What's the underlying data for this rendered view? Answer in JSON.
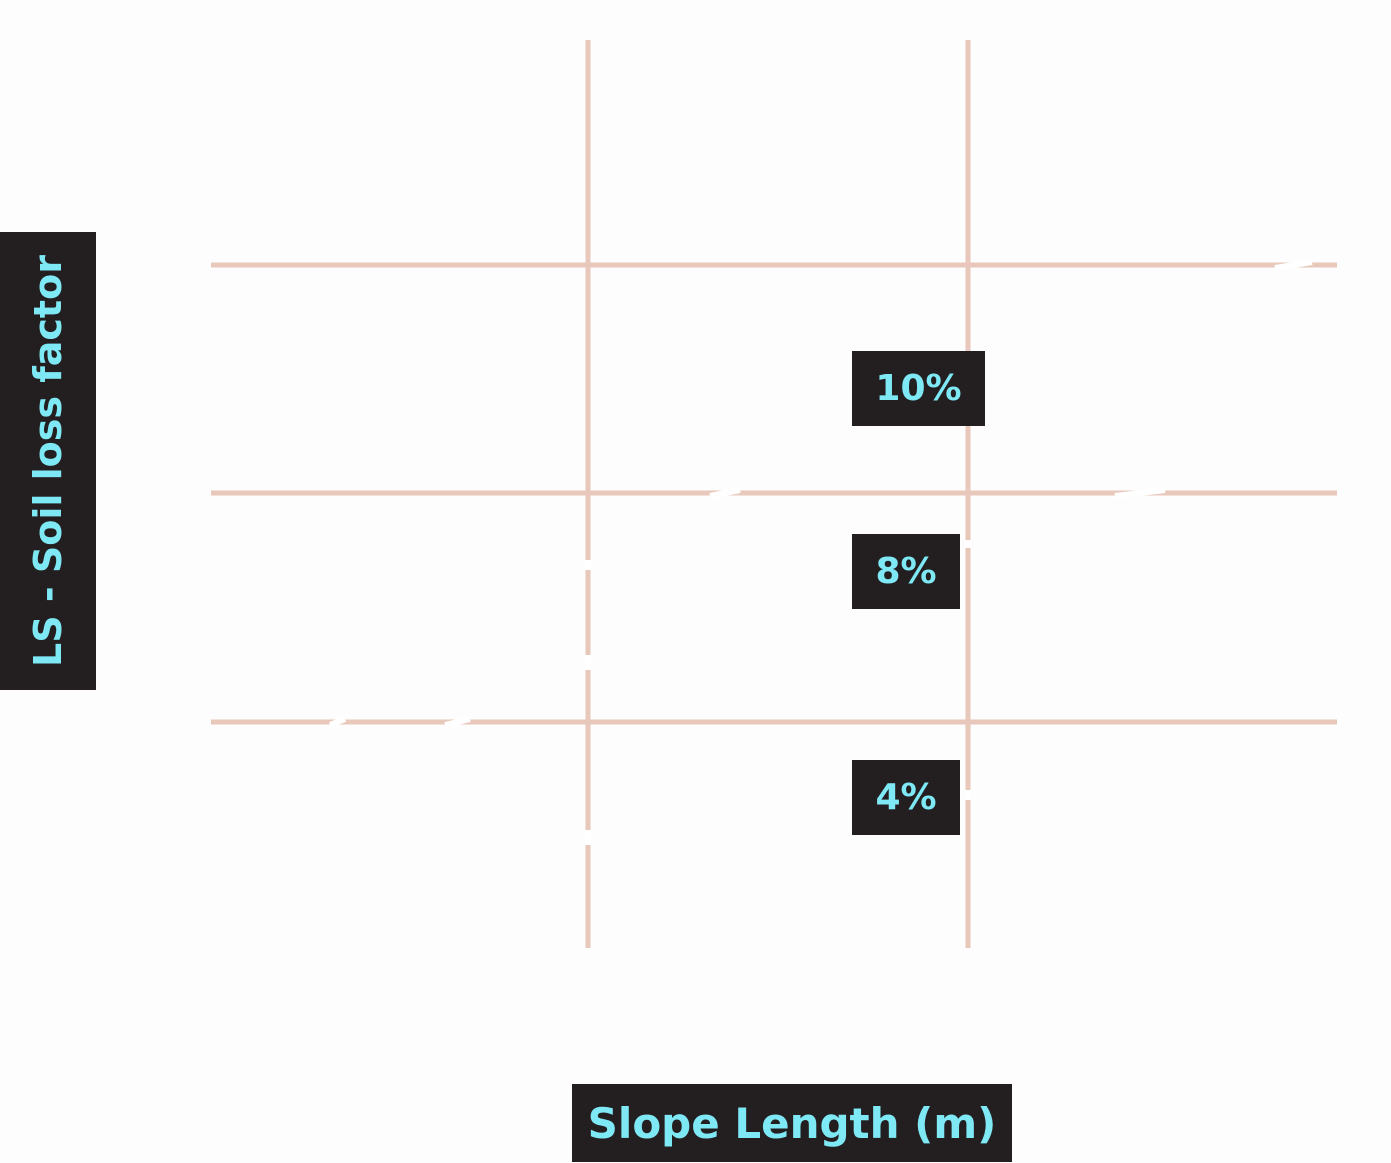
{
  "chart_data": {
    "type": "line",
    "title": "",
    "xlabel": "Slope Length (m)",
    "ylabel": "LS - Soil loss factor",
    "grid": true,
    "series": [
      {
        "name": "10%",
        "values": []
      },
      {
        "name": "8%",
        "values": []
      },
      {
        "name": "4%",
        "values": []
      }
    ],
    "colors": {
      "grid": "#e8c8ba",
      "label_bg": "#231f20",
      "label_text": "#7ee8f5",
      "background": "#fefdfd"
    }
  }
}
